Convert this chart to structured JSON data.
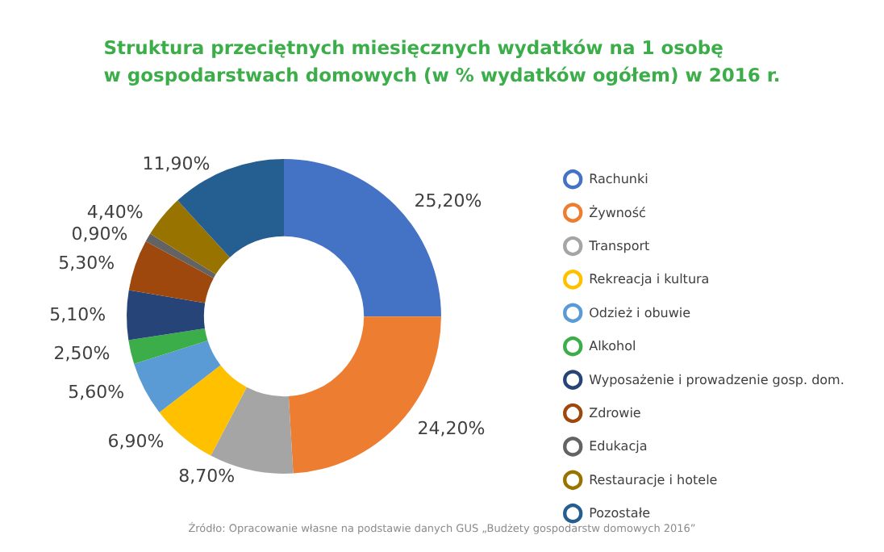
{
  "chart_data": {
    "type": "donut",
    "title": "Struktura przeciętnych miesięcznych wydatków na 1 osobę\nw gospodarstwach domowych (w % wydatków ogółem) w 2016 r.",
    "categories": [
      "Rachunki",
      "Żywność",
      "Transport",
      "Rekreacja i kultura",
      "Odzież i obuwie",
      "Alkohol",
      "Wyposażenie i prowadzenie gosp. dom.",
      "Zdrowie",
      "Edukacja",
      "Restauracje i hotele",
      "Pozostałe"
    ],
    "values": [
      25.2,
      24.2,
      8.7,
      6.9,
      5.6,
      2.5,
      5.1,
      5.3,
      0.9,
      4.4,
      11.9
    ],
    "value_labels": [
      "25,20%",
      "24,20%",
      "8,70%",
      "6,90%",
      "5,60%",
      "2,50%",
      "5,10%",
      "5,30%",
      "0,90%",
      "4,40%",
      "11,90%"
    ],
    "colors": [
      "#4472c4",
      "#ed7d31",
      "#a5a5a5",
      "#ffc000",
      "#5b9bd5",
      "#3cae49",
      "#264478",
      "#9e480e",
      "#636363",
      "#997300",
      "#255e91"
    ],
    "legend": "right",
    "annotations": [
      "Źródło: Opracowanie własne na podstawie danych GUS „Budżety gospodarstw domowych 2016”"
    ]
  }
}
